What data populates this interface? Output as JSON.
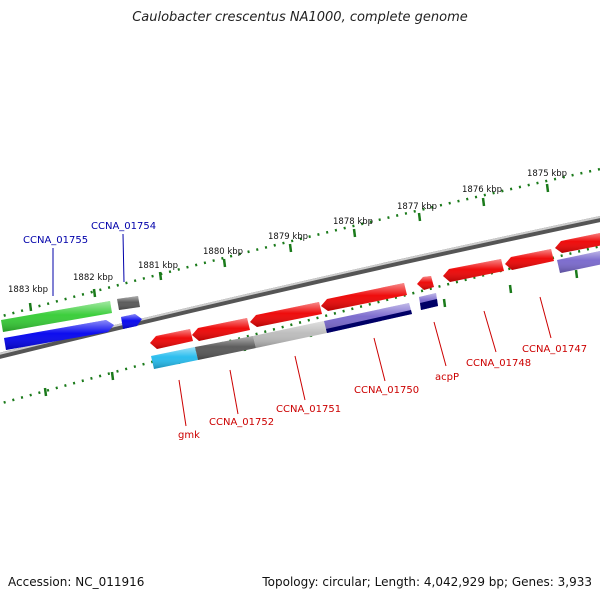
{
  "title": "Caulobacter crescentus NA1000, complete genome",
  "footer": {
    "accession": "Accession: NC_011916",
    "summary": "Topology: circular; Length: 4,042,929 bp; Genes: 3,933"
  },
  "colors": {
    "ruler": "#1a7a1a",
    "backbone": "#777777",
    "gene_label_forward": "#0000aa",
    "gene_label_reverse": "#cc0000",
    "tick_label": "#111111"
  },
  "ruler_labels": [
    "1875 kbp",
    "1876 kbp",
    "1877 kbp",
    "1878 kbp",
    "1879 kbp",
    "1880 kbp",
    "1881 kbp",
    "1882 kbp",
    "1883 kbp"
  ],
  "gene_labels": [
    {
      "text": "CCNA_01755",
      "strand": "forward"
    },
    {
      "text": "CCNA_01754",
      "strand": "forward"
    },
    {
      "text": "gmk",
      "strand": "reverse"
    },
    {
      "text": "CCNA_01752",
      "strand": "reverse"
    },
    {
      "text": "CCNA_01751",
      "strand": "reverse"
    },
    {
      "text": "CCNA_01750",
      "strand": "reverse"
    },
    {
      "text": "acpP",
      "strand": "reverse"
    },
    {
      "text": "CCNA_01748",
      "strand": "reverse"
    },
    {
      "text": "CCNA_01747",
      "strand": "reverse"
    }
  ],
  "features": [
    {
      "name": "CCNA_01755",
      "track": "forward-cds",
      "color": "#33cc33"
    },
    {
      "name": "CCNA_01755",
      "track": "forward-gene",
      "color": "#0000ee"
    },
    {
      "name": "CCNA_01754",
      "track": "forward-cds",
      "color": "#555555"
    },
    {
      "name": "CCNA_01754",
      "track": "forward-gene",
      "color": "#0000ee"
    },
    {
      "name": "gmk",
      "track": "reverse-cds",
      "color": "#ee0000"
    },
    {
      "name": "CCNA_01752",
      "track": "reverse-cds",
      "color": "#ee0000"
    },
    {
      "name": "CCNA_01751",
      "track": "reverse-cds",
      "color": "#ee0000"
    },
    {
      "name": "CCNA_01750",
      "track": "reverse-cds",
      "color": "#ee0000"
    },
    {
      "name": "acpP",
      "track": "reverse-cds",
      "color": "#ee0000"
    },
    {
      "name": "CCNA_01748",
      "track": "reverse-cds",
      "color": "#ee0000"
    },
    {
      "name": "CCNA_01747",
      "track": "reverse-cds",
      "color": "#ee0000"
    },
    {
      "name": "gmk",
      "track": "reverse-gene",
      "color": "#22bbee"
    },
    {
      "name": "CCNA_01752",
      "track": "reverse-gene",
      "color": "#555555"
    },
    {
      "name": "CCNA_01751",
      "track": "reverse-gene",
      "color": "#bbbbbb"
    },
    {
      "name": "CCNA_01750",
      "track": "reverse-gene",
      "color": "#7766cc"
    },
    {
      "name": "acpP",
      "track": "reverse-gene",
      "color": "#7766cc"
    },
    {
      "name": "CCNA_01747",
      "track": "reverse-gene",
      "color": "#7766cc"
    }
  ]
}
